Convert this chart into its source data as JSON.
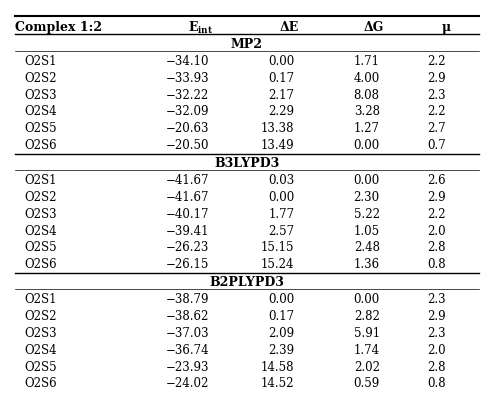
{
  "sections": [
    {
      "label": "MP2",
      "rows": [
        [
          "O2S1",
          "−34.10",
          "0.00",
          "1.71",
          "2.2"
        ],
        [
          "O2S2",
          "−33.93",
          "0.17",
          "4.00",
          "2.9"
        ],
        [
          "O2S3",
          "−32.22",
          "2.17",
          "8.08",
          "2.3"
        ],
        [
          "O2S4",
          "−32.09",
          "2.29",
          "3.28",
          "2.2"
        ],
        [
          "O2S5",
          "−20.63",
          "13.38",
          "1.27",
          "2.7"
        ],
        [
          "O2S6",
          "−20.50",
          "13.49",
          "0.00",
          "0.7"
        ]
      ]
    },
    {
      "label": "B3LYPD3",
      "rows": [
        [
          "O2S1",
          "−41.67",
          "0.03",
          "0.00",
          "2.6"
        ],
        [
          "O2S2",
          "−41.67",
          "0.00",
          "2.30",
          "2.9"
        ],
        [
          "O2S3",
          "−40.17",
          "1.77",
          "5.22",
          "2.2"
        ],
        [
          "O2S4",
          "−39.41",
          "2.57",
          "1.05",
          "2.0"
        ],
        [
          "O2S5",
          "−26.23",
          "15.15",
          "2.48",
          "2.8"
        ],
        [
          "O2S6",
          "−26.15",
          "15.24",
          "1.36",
          "0.8"
        ]
      ]
    },
    {
      "label": "B2PLYPD3",
      "rows": [
        [
          "O2S1",
          "−38.79",
          "0.00",
          "0.00",
          "2.3"
        ],
        [
          "O2S2",
          "−38.62",
          "0.17",
          "2.82",
          "2.9"
        ],
        [
          "O2S3",
          "−37.03",
          "2.09",
          "5.91",
          "2.3"
        ],
        [
          "O2S4",
          "−36.74",
          "2.39",
          "1.74",
          "2.0"
        ],
        [
          "O2S5",
          "−23.93",
          "14.58",
          "2.02",
          "2.8"
        ],
        [
          "O2S6",
          "−24.02",
          "14.52",
          "0.59",
          "0.8"
        ]
      ]
    }
  ],
  "bg_color": "#ffffff",
  "text_color": "#000000",
  "header_fontsize": 9,
  "row_fontsize": 8.5,
  "section_fontsize": 9
}
